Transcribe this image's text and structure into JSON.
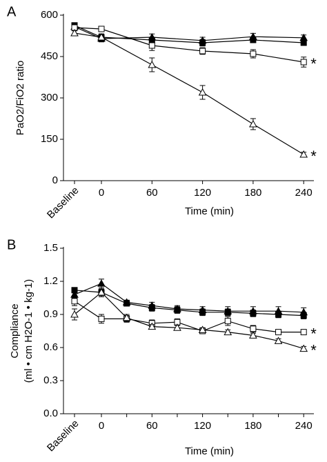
{
  "chart_data": [
    {
      "type": "line",
      "panel": "A",
      "ylabel": "PaO2/FiO2 ratio",
      "xlabel": "Time (min)",
      "categories": [
        "Baseline",
        "0",
        "60",
        "120",
        "180",
        "240"
      ],
      "ylim": [
        0,
        600
      ],
      "yticks": [
        0,
        150,
        300,
        450,
        600
      ],
      "series": [
        {
          "marker": "square",
          "filled": true,
          "color": "#000000",
          "values": [
            563,
            520,
            510,
            500,
            510,
            500
          ],
          "errors": [
            8,
            12,
            10,
            12,
            10,
            8
          ]
        },
        {
          "marker": "triangle",
          "filled": true,
          "color": "#000000",
          "values": [
            558,
            515,
            520,
            508,
            522,
            518
          ],
          "errors": [
            8,
            12,
            12,
            12,
            12,
            10
          ]
        },
        {
          "marker": "square",
          "filled": false,
          "color": "#000000",
          "values": [
            555,
            550,
            490,
            470,
            460,
            430
          ],
          "errors": [
            8,
            10,
            18,
            12,
            15,
            18
          ]
        },
        {
          "marker": "triangle",
          "filled": false,
          "color": "#000000",
          "values": [
            535,
            520,
            420,
            320,
            205,
            95
          ],
          "errors": [
            8,
            12,
            25,
            25,
            20,
            8
          ]
        }
      ],
      "annotations": [
        "*",
        "*"
      ]
    },
    {
      "type": "line",
      "panel": "B",
      "ylabel": [
        "Compliance",
        "(ml • cm H2O-1 • kg-1)"
      ],
      "xlabel": "Time (min)",
      "categories": [
        "Baseline",
        "0",
        null,
        "60",
        null,
        "120",
        null,
        "180",
        null,
        "240"
      ],
      "ylim": [
        0,
        1.5
      ],
      "yticks": [
        {
          "value": 0,
          "label": "0.0"
        },
        0.3,
        0.6,
        0.9,
        1.2,
        1.5
      ],
      "series": [
        {
          "marker": "square",
          "filled": true,
          "color": "#000000",
          "values": [
            1.12,
            1.1,
            1.0,
            0.96,
            0.94,
            0.92,
            0.92,
            0.91,
            0.9,
            0.89
          ],
          "errors": [
            0.02,
            0.03,
            0.02,
            0.03,
            0.03,
            0.03,
            0.03,
            0.03,
            0.03,
            0.03
          ]
        },
        {
          "marker": "triangle",
          "filled": true,
          "color": "#000000",
          "values": [
            1.08,
            1.18,
            1.01,
            0.98,
            0.95,
            0.94,
            0.93,
            0.93,
            0.93,
            0.92
          ],
          "errors": [
            0.03,
            0.04,
            0.02,
            0.03,
            0.03,
            0.03,
            0.04,
            0.04,
            0.04,
            0.04
          ]
        },
        {
          "marker": "square",
          "filled": false,
          "color": "#000000",
          "values": [
            1.02,
            0.86,
            0.86,
            0.82,
            0.83,
            0.75,
            0.84,
            0.77,
            0.74,
            0.74
          ],
          "errors": [
            0.04,
            0.04,
            0.03,
            0.03,
            0.03,
            0.02,
            0.04,
            0.03,
            0.02,
            0.02
          ]
        },
        {
          "marker": "triangle",
          "filled": false,
          "color": "#000000",
          "values": [
            0.9,
            1.1,
            0.87,
            0.79,
            0.78,
            0.76,
            0.74,
            0.71,
            0.66,
            0.59
          ],
          "errors": [
            0.05,
            0.04,
            0.03,
            0.02,
            0.02,
            0.02,
            0.02,
            0.02,
            0.02,
            0.02
          ]
        }
      ],
      "annotations": [
        "*",
        "*"
      ]
    }
  ]
}
